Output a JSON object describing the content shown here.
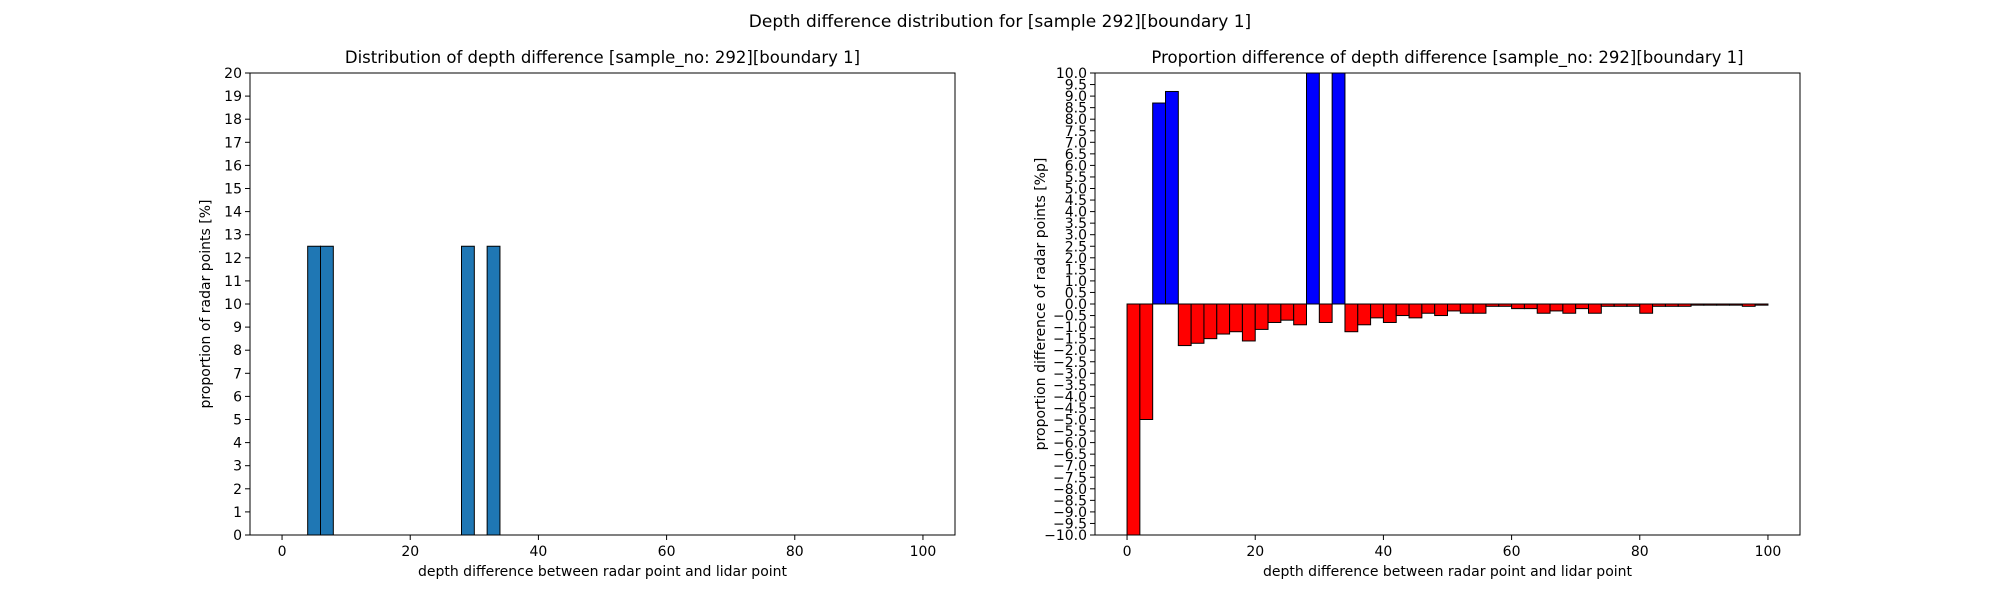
{
  "figure": {
    "suptitle": "Depth difference distribution for [sample 292][boundary 1]"
  },
  "chart_data": [
    {
      "type": "bar",
      "title": "Distribution of depth difference [sample_no: 292][boundary 1]",
      "xlabel": "depth difference between radar point and lidar point",
      "ylabel": "proportion of radar points [%]",
      "xlim": [
        -5,
        105
      ],
      "ylim": [
        0,
        20
      ],
      "xticks": [
        0,
        20,
        40,
        60,
        80,
        100
      ],
      "yticks": [
        0,
        1,
        2,
        3,
        4,
        5,
        6,
        7,
        8,
        9,
        10,
        11,
        12,
        13,
        14,
        15,
        16,
        17,
        18,
        19,
        20
      ],
      "bar_width": 2,
      "bar_color": "#1f77b4",
      "edge_color": "#000000",
      "x": [
        5,
        7,
        29,
        33
      ],
      "values": [
        12.5,
        12.5,
        12.5,
        12.5
      ]
    },
    {
      "type": "bar",
      "title": "Proportion difference of depth difference [sample_no: 292][boundary 1]",
      "xlabel": "depth difference between radar point and lidar point",
      "ylabel": "proportion difference of radar points [%p]",
      "xlim": [
        -5,
        105
      ],
      "ylim": [
        -10,
        10
      ],
      "xticks": [
        0,
        20,
        40,
        60,
        80,
        100
      ],
      "ytick_step": 0.5,
      "bar_width": 2,
      "positive_color": "#0000ff",
      "negative_color": "#ff0000",
      "edge_color": "#000000",
      "x": [
        1,
        3,
        5,
        7,
        9,
        11,
        13,
        15,
        17,
        19,
        21,
        23,
        25,
        27,
        29,
        31,
        33,
        35,
        37,
        39,
        41,
        43,
        45,
        47,
        49,
        51,
        53,
        55,
        57,
        59,
        61,
        63,
        65,
        67,
        69,
        71,
        73,
        75,
        77,
        79,
        81,
        83,
        85,
        87,
        89,
        91,
        93,
        95,
        97,
        99
      ],
      "values": [
        -10.0,
        -5.0,
        8.7,
        9.2,
        -1.8,
        -1.7,
        -1.5,
        -1.3,
        -1.2,
        -1.6,
        -1.1,
        -0.8,
        -0.7,
        -0.9,
        10.0,
        -0.8,
        10.0,
        -1.2,
        -0.9,
        -0.6,
        -0.8,
        -0.5,
        -0.6,
        -0.4,
        -0.5,
        -0.3,
        -0.4,
        -0.4,
        -0.1,
        -0.1,
        -0.2,
        -0.2,
        -0.4,
        -0.3,
        -0.4,
        -0.2,
        -0.4,
        -0.1,
        -0.1,
        -0.1,
        -0.4,
        -0.1,
        -0.1,
        -0.1,
        -0.05,
        -0.05,
        -0.05,
        -0.05,
        -0.1,
        -0.05
      ]
    }
  ]
}
